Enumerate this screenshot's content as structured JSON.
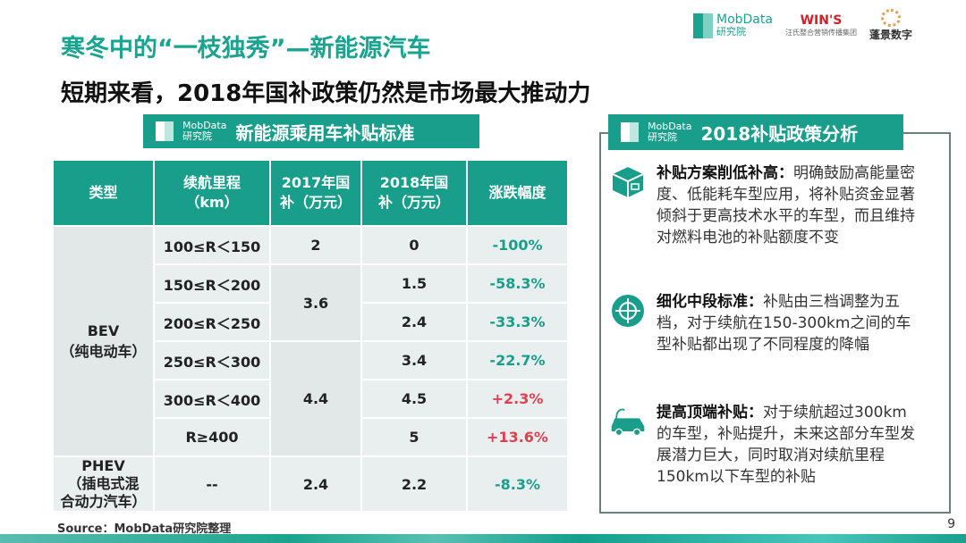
{
  "title": "寒冬中的“一枝独秀”—新能源汽车",
  "subtitle": "短期来看，2018年国补政策仍然是市场最大推动力",
  "logos": {
    "mobdata_en": "MobData",
    "mobdata_cn": "研究院",
    "wins": "WIN'S",
    "wins_cn": "汪氏整合营销传播集团",
    "penjing": "蓬景数字"
  },
  "table_banner": {
    "title": "新能源乘用车补贴标准"
  },
  "table": {
    "headers": [
      "类型",
      "续航里程\n（km）",
      "2017年国\n补（万元）",
      "2018年国\n补（万元）",
      "涨跌幅度"
    ],
    "bev": "BEV\n（纯电动车）",
    "phev": "PHEV\n（插电式混\n合动力汽车）",
    "rows": [
      {
        "range": "100≤R＜150",
        "y2017": "2",
        "y2018": "0",
        "change": "-100%"
      },
      {
        "range": "150≤R＜200",
        "y2017": "3.6",
        "y2018": "1.5",
        "change": "-58.3%"
      },
      {
        "range": "200≤R＜250",
        "y2018": "2.4",
        "change": "-33.3%"
      },
      {
        "range": "250≤R＜300",
        "y2017": "4.4",
        "y2018": "3.4",
        "change": "-22.7%"
      },
      {
        "range": "300≤R＜400",
        "y2018": "4.5",
        "change": "+2.3%"
      },
      {
        "range": "R≥400",
        "y2018": "5",
        "change": "+13.6%"
      },
      {
        "range": "--",
        "y2017": "2.4",
        "y2018": "2.2",
        "change": "-8.3%"
      }
    ]
  },
  "panel": {
    "title": "2018补贴政策分析",
    "items": [
      {
        "icon": "box-icon",
        "head": "补贴方案削低补高：",
        "text": "明确鼓励高能量密度、低能耗车型应用，将补贴资金显著倾斜于更高技术水平的车型，而且维持对燃料电池的补贴额度不变"
      },
      {
        "icon": "target-icon",
        "head": "细化中段标准：",
        "text": "补贴由三档调整为五档，对于续航在150-300km之间的车型补贴都出现了不同程度的降幅"
      },
      {
        "icon": "electric-car-icon",
        "head": "提高顶端补贴：",
        "text": "对于续航超过300km的车型，补贴提升，未来这部分车型发展潜力巨大，同时取消对续航里程150km以下车型的补贴"
      }
    ]
  },
  "source": "Source：MobData研究院整理",
  "page": "9",
  "colors": {
    "accent": "#1a9e8c",
    "negative": "#1a9e8c",
    "positive": "#e04050"
  }
}
